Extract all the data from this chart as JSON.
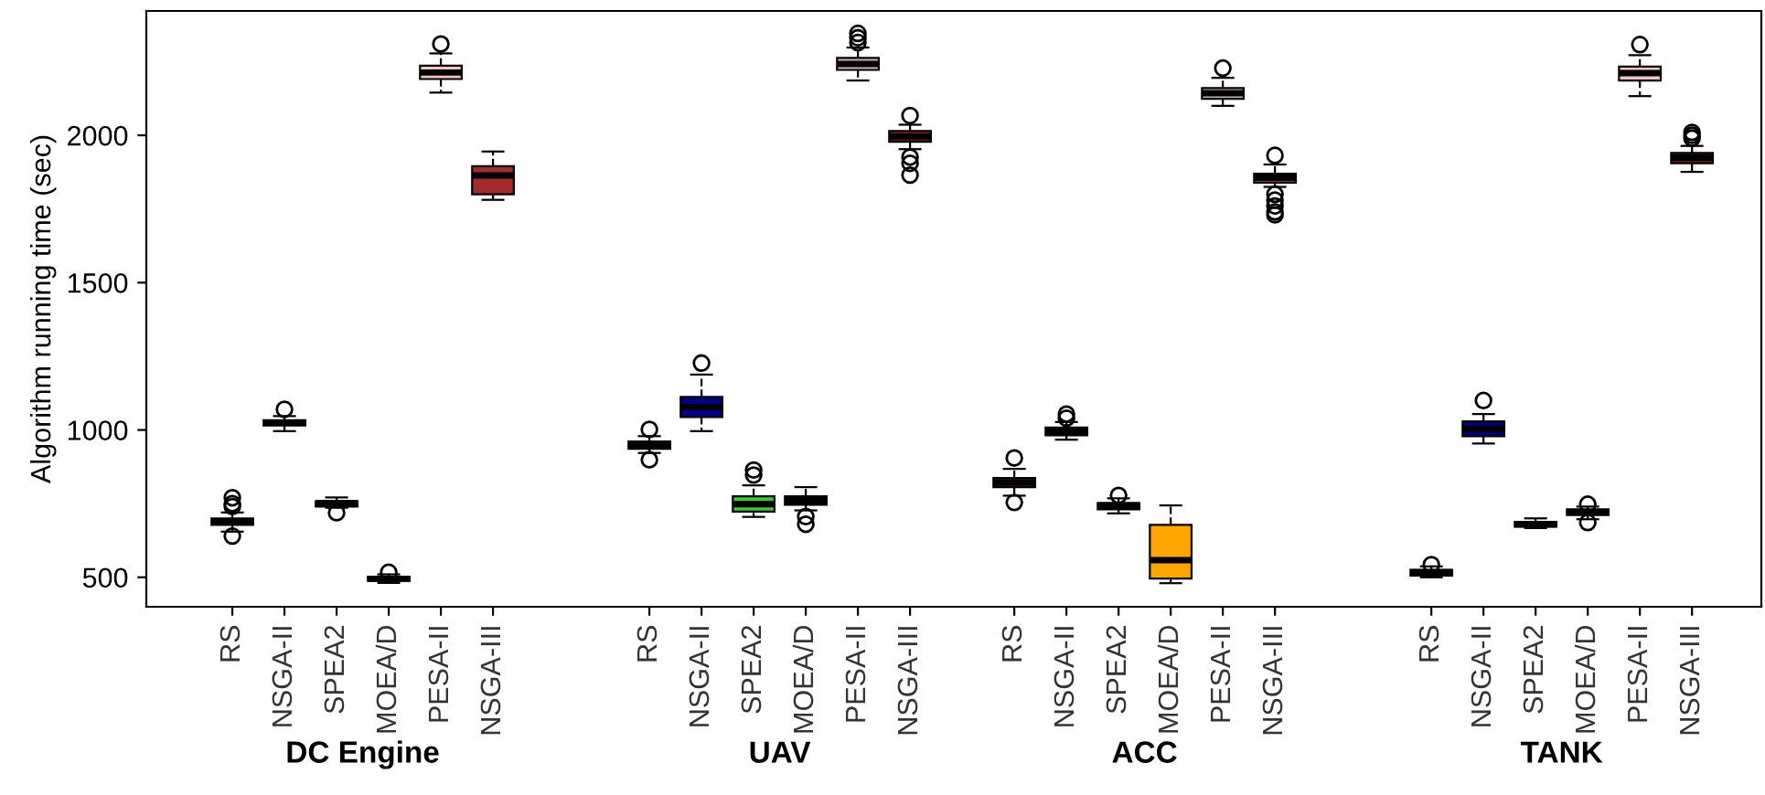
{
  "chart_data": {
    "type": "box",
    "ylabel": "Algorithm running time (sec)",
    "categories": [
      "RS",
      "NSGA-II",
      "SPEA2",
      "MOEA/D",
      "PESA-II",
      "NSGA-III",
      null,
      null,
      "RS",
      "NSGA-II",
      "SPEA2",
      "MOEA/D",
      "PESA-II",
      "NSGA-III",
      null,
      "RS",
      "NSGA-II",
      "SPEA2",
      "MOEA/D",
      "PESA-II",
      "NSGA-III",
      null,
      null,
      "RS",
      "NSGA-II",
      "SPEA2",
      "MOEA/D",
      "PESA-II",
      "NSGA-III"
    ],
    "colors": [
      "#222222",
      "#222222",
      "#222222",
      "#222222",
      "#f4c2c2",
      "#a52a2a",
      null,
      null,
      "#6b1a1a",
      "#00008b",
      "#32cd32",
      "#111111",
      "#d8b0b0",
      "#6b1a1a",
      null,
      "#6b1a1a",
      "#111111",
      "#111111",
      "#ffa500",
      "#d8b0b0",
      "#a52a2a",
      null,
      null,
      "#222222",
      "#00008b",
      "#222222",
      "#222222",
      "#f4c2c2",
      "#6b1a1a"
    ],
    "boxes": [
      {
        "low": 655,
        "q1": 678,
        "median": 690,
        "q3": 700,
        "high": 720,
        "outliers": [
          770,
          750,
          740,
          640
        ]
      },
      {
        "low": 996,
        "q1": 1015,
        "median": 1025,
        "q3": 1033,
        "high": 1047,
        "outliers": [
          1070
        ]
      },
      {
        "low": 736,
        "q1": 740,
        "median": 752,
        "q3": 758,
        "high": 771,
        "outliers": [
          719
        ]
      },
      {
        "low": 481,
        "q1": 488,
        "median": 495,
        "q3": 502,
        "high": 510,
        "outliers": [
          517
        ]
      },
      {
        "low": 2145,
        "q1": 2191,
        "median": 2213,
        "q3": 2236,
        "high": 2278,
        "outliers": [
          2310
        ]
      },
      {
        "low": 1781,
        "q1": 1800,
        "median": 1864,
        "q3": 1895,
        "high": 1945
      },
      null,
      null,
      {
        "low": 922,
        "q1": 936,
        "median": 948,
        "q3": 961,
        "high": 979,
        "outliers": [
          1002,
          899
        ]
      },
      {
        "low": 996,
        "q1": 1044,
        "median": 1078,
        "q3": 1112,
        "high": 1188,
        "outliers": [
          1227
        ]
      },
      {
        "low": 705,
        "q1": 723,
        "median": 748,
        "q3": 775,
        "high": 812,
        "outliers": [
          864,
          847
        ]
      },
      {
        "low": 727,
        "q1": 746,
        "median": 760,
        "q3": 775,
        "high": 806,
        "outliers": [
          706,
          680
        ]
      },
      {
        "low": 2186,
        "q1": 2222,
        "median": 2242,
        "q3": 2263,
        "high": 2298,
        "outliers": [
          2346,
          2331,
          2315
        ]
      },
      {
        "low": 1953,
        "q1": 1978,
        "median": 1996,
        "q3": 2015,
        "high": 2036,
        "outliers": [
          2067,
          1926,
          1905,
          1865
        ]
      },
      null,
      {
        "low": 777,
        "q1": 806,
        "median": 822,
        "q3": 837,
        "high": 868,
        "outliers": [
          905,
          754
        ]
      },
      {
        "low": 967,
        "q1": 982,
        "median": 996,
        "q3": 1008,
        "high": 1027,
        "outliers": [
          1054,
          1040
        ]
      },
      {
        "low": 717,
        "q1": 731,
        "median": 744,
        "q3": 752,
        "high": 768,
        "outliers": [
          778
        ]
      },
      {
        "low": 480,
        "q1": 496,
        "median": 558,
        "q3": 678,
        "high": 744
      },
      {
        "low": 2100,
        "q1": 2124,
        "median": 2143,
        "q3": 2160,
        "high": 2195,
        "outliers": [
          2228
        ]
      },
      {
        "low": 1825,
        "q1": 1839,
        "median": 1856,
        "q3": 1870,
        "high": 1901,
        "outliers": [
          1932,
          1800,
          1780,
          1760,
          1740,
          1730
        ]
      },
      null,
      null,
      {
        "low": 500,
        "q1": 506,
        "median": 517,
        "q3": 525,
        "high": 537,
        "outliers": [
          543
        ]
      },
      {
        "low": 954,
        "q1": 979,
        "median": 1004,
        "q3": 1029,
        "high": 1054,
        "outliers": [
          1100
        ]
      },
      {
        "low": 667,
        "q1": 672,
        "median": 680,
        "q3": 688,
        "high": 700
      },
      {
        "low": 697,
        "q1": 711,
        "median": 721,
        "q3": 731,
        "high": 740,
        "outliers": [
          748,
          686
        ]
      },
      {
        "low": 2133,
        "q1": 2186,
        "median": 2211,
        "q3": 2233,
        "high": 2272,
        "outliers": [
          2308
        ]
      },
      {
        "low": 1876,
        "q1": 1905,
        "median": 1924,
        "q3": 1940,
        "high": 1964,
        "outliers": [
          2010,
          2000,
          1990
        ]
      }
    ],
    "ylim": [
      400,
      2422
    ],
    "yticks": [
      500,
      1000,
      1500,
      2000
    ],
    "grid": false,
    "legend": false,
    "annotations": [
      "DC Engine",
      "UAV",
      "ACC",
      "TANK"
    ]
  }
}
